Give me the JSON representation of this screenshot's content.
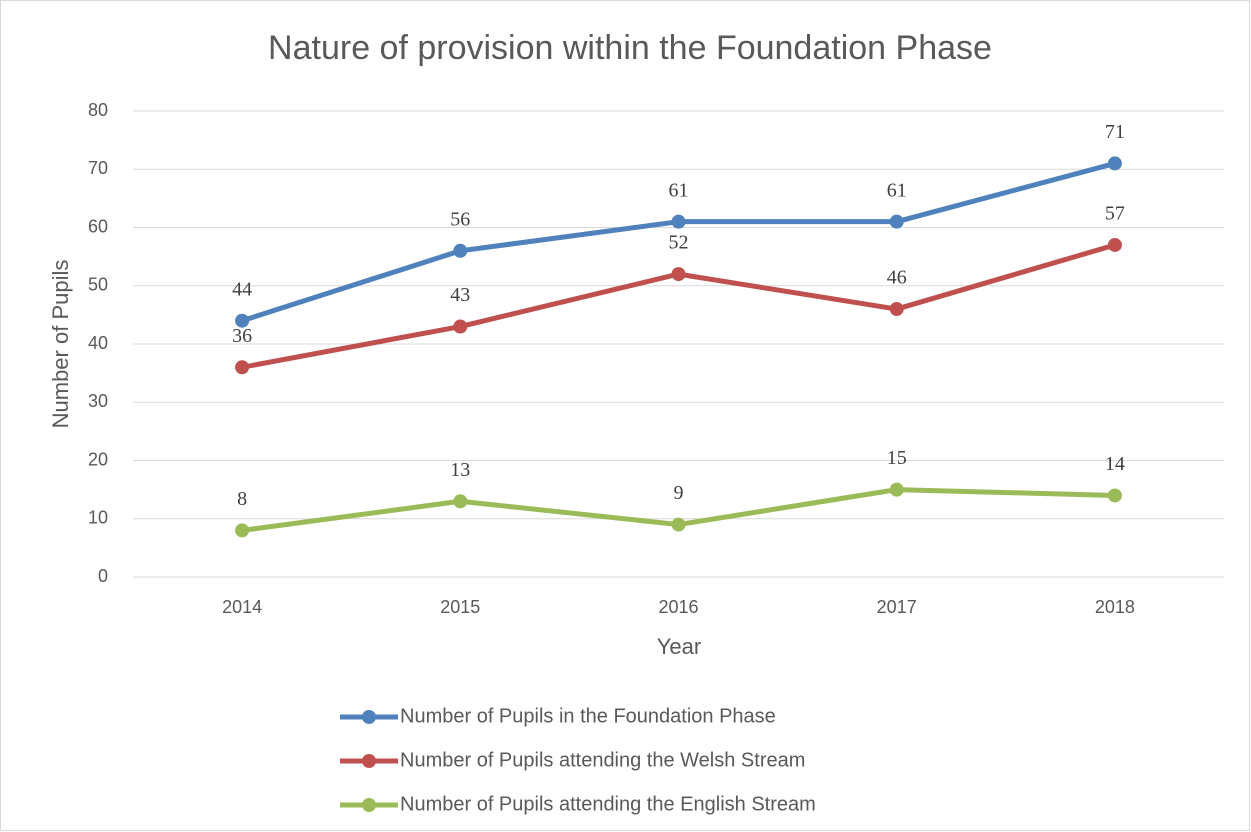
{
  "chart_data": {
    "type": "line",
    "title": "Nature of provision within the Foundation Phase",
    "x_label": "Year",
    "y_label": "Number of Pupils",
    "categories": [
      "2014",
      "2015",
      "2016",
      "2017",
      "2018"
    ],
    "series": [
      {
        "name": "Number of Pupils in the Foundation Phase",
        "color": "#4f81bd",
        "values": [
          44,
          56,
          61,
          61,
          71
        ]
      },
      {
        "name": "Number of Pupils attending the Welsh Stream",
        "color": "#c0504d",
        "values": [
          36,
          43,
          52,
          46,
          57
        ]
      },
      {
        "name": "Number of Pupils attending the English Stream",
        "color": "#9bbb59",
        "values": [
          8,
          13,
          9,
          15,
          14
        ]
      }
    ],
    "ylim": [
      0,
      80
    ],
    "yticks": [
      0,
      10,
      20,
      30,
      40,
      50,
      60,
      70,
      80
    ],
    "grid": true,
    "legend": "bottom",
    "data_labels": true
  }
}
